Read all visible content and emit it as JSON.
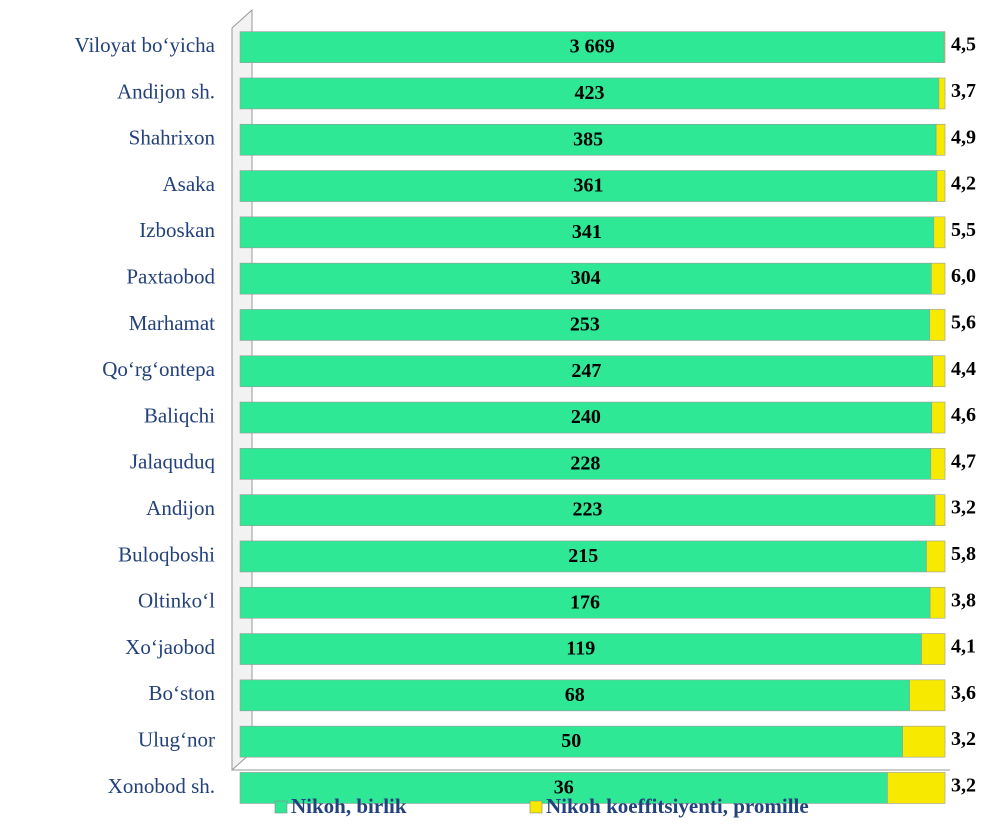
{
  "chart_data": {
    "type": "bar",
    "orientation": "horizontal",
    "stacked": "percent",
    "categories": [
      "Viloyat bo‘yicha",
      "Andijon sh.",
      "Shahrixon",
      "Asaka",
      "Izboskan",
      "Paxtaobod",
      "Marhamat",
      "Qo‘rg‘ontepa",
      "Baliqchi",
      "Jalaquduq",
      "Andijon",
      "Buloqboshi",
      "Oltinko‘l",
      "Xo‘jaobod",
      "Bo‘ston",
      "Ulug‘nor",
      "Xonobod sh."
    ],
    "series": [
      {
        "name": "Nikoh, birlik",
        "color": "#2ee896",
        "values": [
          3669,
          423,
          385,
          361,
          341,
          304,
          253,
          247,
          240,
          228,
          223,
          215,
          176,
          119,
          68,
          50,
          36
        ],
        "value_labels": [
          "3 669",
          "423",
          "385",
          "361",
          "341",
          "304",
          "253",
          "247",
          "240",
          "228",
          "223",
          "215",
          "176",
          "119",
          "68",
          "50",
          "36"
        ]
      },
      {
        "name": "Nikoh koeffitsiyenti, promille",
        "color": "#f7ea00",
        "values": [
          4.5,
          3.7,
          4.9,
          4.2,
          5.5,
          6.0,
          5.6,
          4.4,
          4.6,
          4.7,
          3.2,
          5.8,
          3.8,
          4.1,
          3.6,
          3.2,
          3.2
        ],
        "value_labels": [
          "4,5",
          "3,7",
          "4,9",
          "4,2",
          "5,5",
          "6,0",
          "5,6",
          "4,4",
          "4,6",
          "4,7",
          "3,2",
          "5,8",
          "3,8",
          "4,1",
          "3,6",
          "3,2",
          "3,2"
        ]
      }
    ],
    "legend": "bottom"
  }
}
